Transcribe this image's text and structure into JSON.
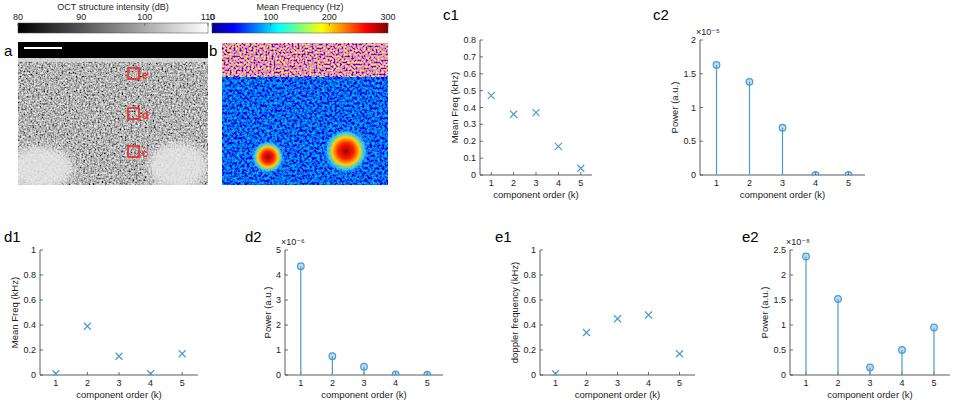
{
  "chart_data": [
    {
      "type": "image",
      "panel": "a",
      "title": "OCT structure intensity (dB)",
      "colorbar_lim": [
        80,
        110
      ],
      "colorbar_ticks": [
        80,
        90,
        100,
        110
      ],
      "annotations": [
        "e",
        "d",
        "c"
      ]
    },
    {
      "type": "heatmap",
      "panel": "b",
      "title": "Mean Frequency (Hz)",
      "colorbar_lim": [
        0,
        300
      ],
      "colorbar_ticks": [
        0,
        100,
        200,
        300
      ]
    },
    {
      "type": "scatter",
      "panel": "c1",
      "x_label": "component order (k)",
      "y_label": "Mean Freq (kHz)",
      "x": [
        1,
        2,
        3,
        4,
        5
      ],
      "values": [
        0.47,
        0.36,
        0.37,
        0.17,
        0.04
      ],
      "xlim": [
        0.5,
        5.5
      ],
      "xticks": [
        1,
        2,
        3,
        4,
        5
      ],
      "ylim": [
        0,
        0.8
      ],
      "yticks": [
        0,
        0.1,
        0.2,
        0.3,
        0.4,
        0.5,
        0.6,
        0.7,
        0.8
      ],
      "marker": "x",
      "color": "#4a9bd4"
    },
    {
      "type": "stem",
      "panel": "c2",
      "x_label": "component order (k)",
      "y_label": "Power (a.u.)",
      "multiplier": "×10⁻⁵",
      "x": [
        1,
        2,
        3,
        4,
        5
      ],
      "values": [
        1.63,
        1.38,
        0.7,
        0,
        0
      ],
      "xlim": [
        0.5,
        5.5
      ],
      "xticks": [
        1,
        2,
        3,
        4,
        5
      ],
      "ylim": [
        0,
        2
      ],
      "yticks": [
        0,
        0.5,
        1,
        1.5,
        2
      ],
      "marker": "o",
      "color": "#4a9bd4"
    },
    {
      "type": "scatter",
      "panel": "d1",
      "x_label": "component order (k)",
      "y_label": "Mean Freq (kHz)",
      "x": [
        1,
        2,
        3,
        4,
        5
      ],
      "values": [
        0.01,
        0.39,
        0.15,
        0.01,
        0.17
      ],
      "xlim": [
        0.5,
        5.5
      ],
      "xticks": [
        1,
        2,
        3,
        4,
        5
      ],
      "ylim": [
        0,
        1
      ],
      "yticks": [
        0,
        0.2,
        0.4,
        0.6,
        0.8,
        1
      ],
      "marker": "x",
      "color": "#4a9bd4"
    },
    {
      "type": "stem",
      "panel": "d2",
      "x_label": "component order (k)",
      "y_label": "Power (a.u.)",
      "multiplier": "×10⁻⁶",
      "x": [
        1,
        2,
        3,
        4,
        5
      ],
      "values": [
        4.35,
        0.75,
        0.33,
        0.02,
        0.01
      ],
      "xlim": [
        0.5,
        5.5
      ],
      "xticks": [
        1,
        2,
        3,
        4,
        5
      ],
      "ylim": [
        0,
        5
      ],
      "yticks": [
        0,
        1,
        2,
        3,
        4,
        5
      ],
      "marker": "o",
      "color": "#4a9bd4"
    },
    {
      "type": "scatter",
      "panel": "e1",
      "x_label": "component order (k)",
      "y_label": "doppler frequency (kHz)",
      "x": [
        1,
        2,
        3,
        4,
        5
      ],
      "values": [
        0.01,
        0.34,
        0.45,
        0.48,
        0.17
      ],
      "xlim": [
        0.5,
        5.5
      ],
      "xticks": [
        1,
        2,
        3,
        4,
        5
      ],
      "ylim": [
        0,
        1
      ],
      "yticks": [
        0,
        0.2,
        0.4,
        0.6,
        0.8,
        1
      ],
      "marker": "x",
      "color": "#4a9bd4"
    },
    {
      "type": "stem",
      "panel": "e2",
      "x_label": "component order (k)",
      "y_label": "Power (a.u.)",
      "multiplier": "×10⁻⁸",
      "x": [
        1,
        2,
        3,
        4,
        5
      ],
      "values": [
        2.37,
        1.52,
        0.15,
        0.5,
        0.95
      ],
      "xlim": [
        0.5,
        5.5
      ],
      "xticks": [
        1,
        2,
        3,
        4,
        5
      ],
      "ylim": [
        0,
        2.5
      ],
      "yticks": [
        0,
        0.5,
        1,
        1.5,
        2,
        2.5
      ],
      "marker": "o",
      "color": "#4a9bd4"
    }
  ]
}
